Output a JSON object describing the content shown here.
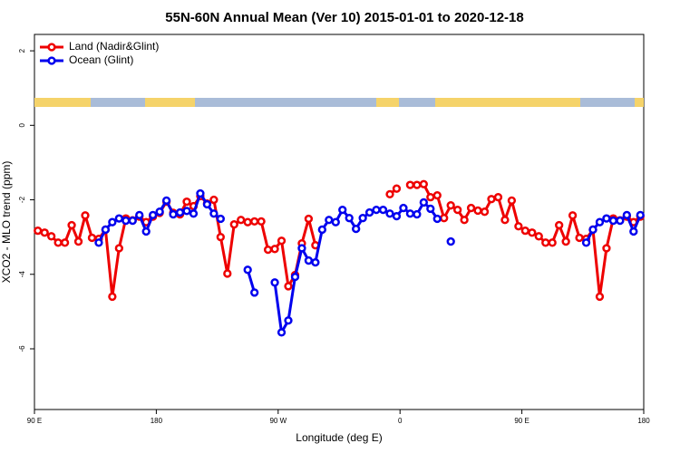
{
  "chart_data": {
    "type": "line",
    "title": "55N-60N Annual Mean (Ver 10)   2015-01-01 to 2020-12-18",
    "x_label": "Longitude (deg E)",
    "y_label": "XCO2 - MLO trend (ppm)",
    "xlim": [
      90,
      540
    ],
    "ylim": [
      -7.63,
      2.44
    ],
    "xticks": [
      {
        "value": 90,
        "label": "90 E"
      },
      {
        "value": 180,
        "label": "180"
      },
      {
        "value": 270,
        "label": "90 W"
      },
      {
        "value": 360,
        "label": "0"
      },
      {
        "value": 450,
        "label": "90 E"
      },
      {
        "value": 540,
        "label": "180"
      }
    ],
    "yticks": [
      2,
      0,
      -2,
      -4,
      -6
    ],
    "legend": "top-left",
    "x": [
      92.5,
      97.5,
      102.5,
      107.5,
      112.5,
      117.5,
      122.5,
      127.5,
      132.5,
      137.5,
      142.5,
      147.5,
      152.5,
      157.5,
      162.5,
      167.5,
      172.5,
      177.5,
      182.5,
      187.5,
      192.5,
      197.5,
      202.5,
      207.5,
      212.5,
      217.5,
      222.5,
      227.5,
      232.5,
      237.5,
      242.5,
      247.5,
      252.5,
      257.5,
      262.5,
      267.5,
      272.5,
      277.5,
      282.5,
      287.5,
      292.5,
      297.5,
      302.5,
      307.5,
      312.5,
      317.5,
      322.5,
      327.5,
      332.5,
      337.5,
      342.5,
      347.5,
      352.5,
      357.5,
      362.5,
      367.5,
      372.5,
      377.5,
      382.5,
      387.5,
      392.5,
      397.5,
      402.5,
      407.5,
      412.5,
      417.5,
      422.5,
      427.5,
      432.5,
      437.5,
      442.5,
      447.5,
      452.5,
      457.5,
      462.5,
      467.5,
      472.5,
      477.5,
      482.5,
      487.5,
      492.5,
      497.5,
      502.5,
      507.5,
      512.5,
      517.5,
      522.5,
      527.5,
      532.5,
      537.5
    ],
    "series": [
      {
        "name": "Land (Nadir&Glint)",
        "color": "#ee0000",
        "values": [
          -2.83,
          -2.88,
          -2.98,
          -3.15,
          -3.15,
          -2.68,
          -3.12,
          -2.42,
          -3.02,
          -3.05,
          -2.8,
          -4.6,
          -3.3,
          -2.5,
          -2.55,
          -2.45,
          -2.6,
          -2.45,
          -2.35,
          -2.05,
          -2.35,
          -2.39,
          -2.05,
          -2.17,
          -1.9,
          -2.1,
          -2.0,
          -3.0,
          -3.98,
          -2.66,
          -2.54,
          -2.6,
          -2.58,
          -2.58,
          -3.34,
          -3.32,
          -3.1,
          -4.32,
          -4.02,
          -3.17,
          -2.51,
          -3.22,
          null,
          null,
          null,
          null,
          null,
          null,
          null,
          null,
          null,
          null,
          -1.85,
          -1.7,
          null,
          -1.6,
          -1.6,
          -1.58,
          -1.93,
          -1.88,
          -2.49,
          -2.15,
          -2.27,
          -2.54,
          -2.22,
          -2.29,
          -2.32,
          -1.98,
          -1.93,
          -2.54,
          -2.02,
          -2.71,
          -2.83,
          -2.88,
          -2.98,
          -3.15,
          -3.15,
          -2.68,
          -3.12,
          -2.42,
          -3.02,
          -3.05,
          -2.8,
          -4.6,
          -3.3,
          -2.5,
          -2.55,
          -2.45,
          -2.6,
          -2.45
        ]
      },
      {
        "name": "Ocean (Glint)",
        "color": "#0000ee",
        "values": [
          null,
          null,
          null,
          null,
          null,
          null,
          null,
          null,
          null,
          -3.15,
          -2.8,
          -2.6,
          -2.5,
          -2.56,
          -2.56,
          -2.41,
          -2.85,
          -2.41,
          -2.32,
          -2.02,
          -2.39,
          -2.34,
          -2.3,
          -2.37,
          -1.83,
          -2.12,
          -2.37,
          -2.51,
          null,
          null,
          null,
          -3.88,
          -4.49,
          null,
          null,
          -4.22,
          -5.56,
          -5.24,
          -4.07,
          -3.3,
          -3.63,
          -3.68,
          -2.8,
          -2.54,
          -2.6,
          -2.27,
          -2.49,
          -2.78,
          -2.49,
          -2.34,
          -2.27,
          -2.27,
          -2.37,
          -2.44,
          -2.22,
          -2.37,
          -2.39,
          -2.07,
          -2.24,
          -2.51,
          null,
          -3.12,
          null,
          null,
          null,
          null,
          null,
          null,
          null,
          null,
          null,
          null,
          null,
          null,
          null,
          null,
          null,
          null,
          null,
          null,
          null,
          -3.15,
          -2.8,
          -2.6,
          -2.5,
          -2.56,
          -2.56,
          -2.41,
          -2.85,
          -2.41
        ]
      }
    ]
  }
}
